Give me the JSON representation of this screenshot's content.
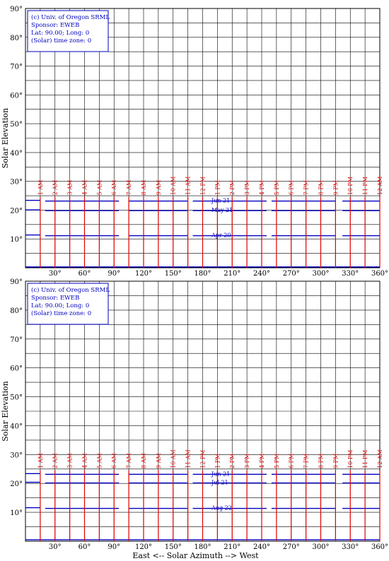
{
  "chart_data": [
    {
      "type": "line",
      "ylabel": "Solar Elevation",
      "xlabel": "",
      "xlim": [
        0,
        360
      ],
      "ylim": [
        0,
        90
      ],
      "xticks": [
        "30°",
        "60°",
        "90°",
        "120°",
        "150°",
        "180°",
        "210°",
        "240°",
        "270°",
        "300°",
        "330°",
        "360°"
      ],
      "yticks": [
        "10°",
        "20°",
        "30°",
        "40°",
        "50°",
        "60°",
        "70°",
        "80°",
        "90°"
      ],
      "legend": {
        "lines": [
          "(c) Univ. of Oregon SRML",
          "Sponsor: EWEB",
          "Lat: 90.00; Long: 0",
          "(Solar) time zone: 0"
        ]
      },
      "hour_labels": [
        "1 AM",
        "2 AM",
        "3 AM",
        "4 AM",
        "5 AM",
        "6 AM",
        "7 AM",
        "8 AM",
        "9 AM",
        "10 AM",
        "11 AM",
        "12 PM",
        "1 PM",
        "2 PM",
        "3 PM",
        "4 PM",
        "5 PM",
        "6 PM",
        "7 PM",
        "8 PM",
        "9 PM",
        "10 PM",
        "11 PM",
        "12 AM"
      ],
      "series": [
        {
          "name": "Jun 21",
          "elevation": 23.4
        },
        {
          "name": "May 21",
          "elevation": 20.1
        },
        {
          "name": "Apr 20",
          "elevation": 11.4
        },
        {
          "name": "",
          "elevation": 0.3
        }
      ]
    },
    {
      "type": "line",
      "ylabel": "Solar Elevation",
      "xlabel": "East <-- Solar Azimuth --> West",
      "xlim": [
        0,
        360
      ],
      "ylim": [
        0,
        90
      ],
      "xticks": [
        "30°",
        "60°",
        "90°",
        "120°",
        "150°",
        "180°",
        "210°",
        "240°",
        "270°",
        "300°",
        "330°",
        "360°"
      ],
      "yticks": [
        "10°",
        "20°",
        "30°",
        "40°",
        "50°",
        "60°",
        "70°",
        "80°",
        "90°"
      ],
      "legend": {
        "lines": [
          "(c) Univ. of Oregon SRML",
          "Sponsor: EWEB",
          "Lat: 90.00; Long: 0",
          "(Solar) time zone: 0"
        ]
      },
      "hour_labels": [
        "1 AM",
        "2 AM",
        "3 AM",
        "4 AM",
        "5 AM",
        "6 AM",
        "7 AM",
        "8 AM",
        "9 AM",
        "10 AM",
        "11 AM",
        "12 PM",
        "1 PM",
        "2 PM",
        "3 PM",
        "4 PM",
        "5 PM",
        "6 PM",
        "7 PM",
        "8 PM",
        "9 PM",
        "10 PM",
        "11 PM",
        "12 AM"
      ],
      "series": [
        {
          "name": "Jun 21",
          "elevation": 23.4
        },
        {
          "name": "Jul 21",
          "elevation": 20.4
        },
        {
          "name": "Aug 22",
          "elevation": 11.6
        },
        {
          "name": "",
          "elevation": 0.5
        }
      ]
    }
  ]
}
